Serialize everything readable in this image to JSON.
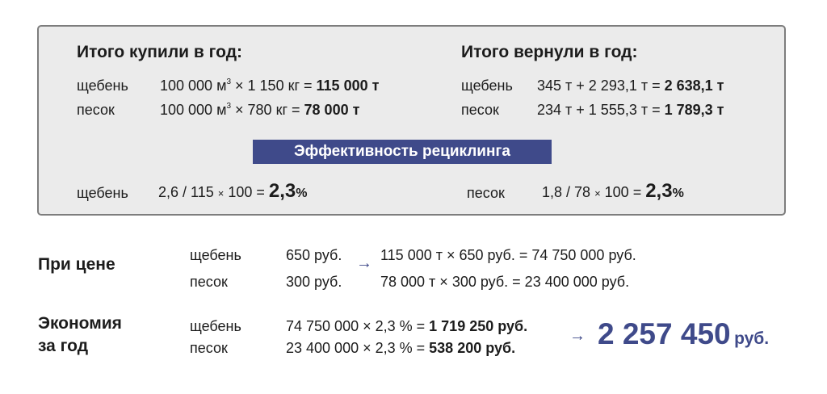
{
  "panel": {
    "bought": {
      "title": "Итого купили в год:",
      "rows": [
        {
          "label": "щебень",
          "pre": "100 000 м",
          "sup": "3",
          "mid": " × 1 150 кг = ",
          "result": "115 000 т"
        },
        {
          "label": "песок",
          "pre": "100 000 м",
          "sup": "3",
          "mid": " × 780 кг = ",
          "result": "78 000 т"
        }
      ]
    },
    "returned": {
      "title": "Итого вернули в год:",
      "rows": [
        {
          "label": "щебень",
          "expr": "345 т + 2 293,1 т = ",
          "result": "2 638,1 т"
        },
        {
          "label": "песок",
          "expr": "234 т + 1 555,3 т = ",
          "result": "1 789,3 т"
        }
      ]
    },
    "efficiency": {
      "banner": "Эффективность рециклинга",
      "left": {
        "label": "щебень",
        "expr_a": "2,6 / 115 ",
        "times": "×",
        "expr_b": " 100 = ",
        "value": "2,3",
        "unit": "%"
      },
      "right": {
        "label": "песок",
        "expr_a": "1,8 / 78 ",
        "times": "×",
        "expr_b": " 100 = ",
        "value": "2,3",
        "unit": "%"
      }
    }
  },
  "price": {
    "title": "При цене",
    "rows": [
      {
        "label": "щебень",
        "price": "650 руб.",
        "calc": "115 000 т × 650 руб. = 74 750 000 руб."
      },
      {
        "label": "песок",
        "price": "300 руб.",
        "calc": "78 000 т × 300 руб. = 23 400 000 руб."
      }
    ]
  },
  "savings": {
    "title_line1": "Экономия",
    "title_line2": "за год",
    "rows": [
      {
        "label": "щебень",
        "calc": "74 750 000 × 2,3 % = ",
        "result": "1 719 250 руб."
      },
      {
        "label": "песок",
        "calc": "23 400 000 × 2,3 % = ",
        "result": "538 200 руб."
      }
    ],
    "total": "2 257 450",
    "total_unit": "руб."
  },
  "icons": {
    "arrow": "arrow-right-icon"
  },
  "colors": {
    "accent": "#3f4a8a",
    "panel_bg": "#ebebeb",
    "panel_border": "#7d7d7d"
  }
}
